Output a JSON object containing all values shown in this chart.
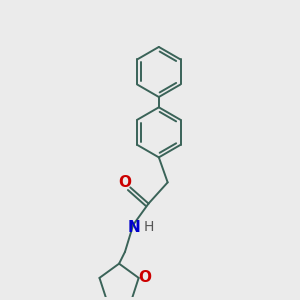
{
  "background_color": "#ebebeb",
  "bond_color": "#3a6358",
  "bond_width": 1.4,
  "atom_colors": {
    "O": "#cc0000",
    "N": "#0000cc",
    "H": "#555555",
    "C": "#3a6358"
  },
  "figsize": [
    3.0,
    3.0
  ],
  "dpi": 100,
  "xlim": [
    0,
    10
  ],
  "ylim": [
    0,
    10
  ]
}
